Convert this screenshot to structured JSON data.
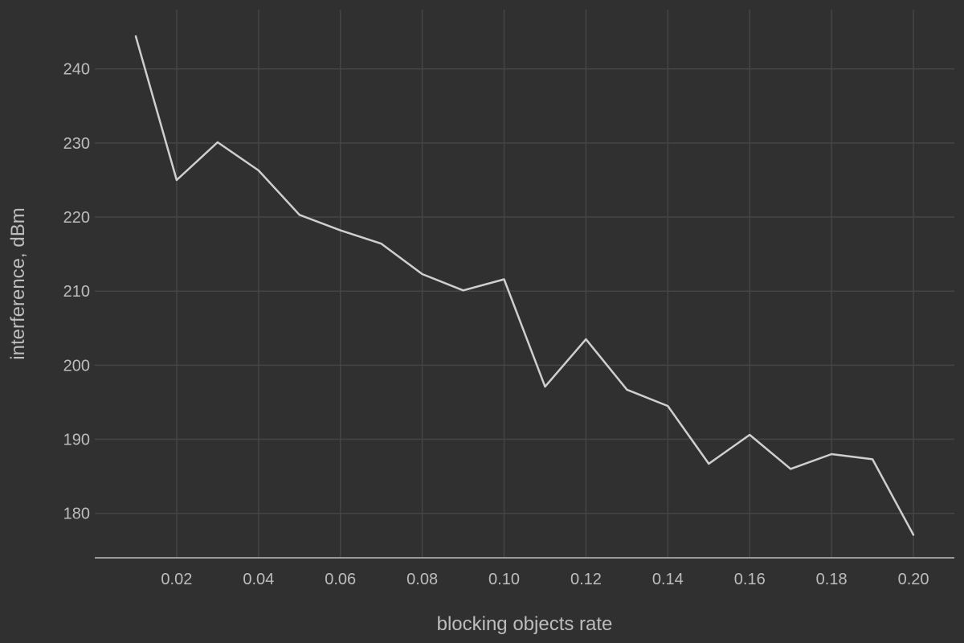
{
  "chart_data": {
    "type": "line",
    "xlabel": "blocking objects rate",
    "ylabel": "interference, dBm",
    "xlim": [
      0.0,
      0.21
    ],
    "ylim": [
      174,
      248
    ],
    "x_ticks": [
      0.02,
      0.04,
      0.06,
      0.08,
      0.1,
      0.12,
      0.14,
      0.16,
      0.18,
      0.2
    ],
    "x_tick_labels": [
      "0.02",
      "0.04",
      "0.06",
      "0.08",
      "0.10",
      "0.12",
      "0.14",
      "0.16",
      "0.18",
      "0.20"
    ],
    "y_ticks": [
      180,
      190,
      200,
      210,
      220,
      230,
      240
    ],
    "y_tick_labels": [
      "180",
      "190",
      "200",
      "210",
      "220",
      "230",
      "240"
    ],
    "grid": true,
    "colors": {
      "background": "#303030",
      "line": "#cfcfcf",
      "grid": "#454545",
      "text": "#bdbdbd"
    },
    "series": [
      {
        "x": [
          0.01,
          0.02,
          0.03,
          0.04,
          0.05,
          0.06,
          0.07,
          0.08,
          0.09,
          0.1,
          0.11,
          0.12,
          0.13,
          0.14,
          0.15,
          0.16,
          0.17,
          0.18,
          0.19,
          0.2
        ],
        "values": [
          244.4,
          225.0,
          230.1,
          226.3,
          220.3,
          218.2,
          216.4,
          212.3,
          210.1,
          211.6,
          197.1,
          203.5,
          196.7,
          194.5,
          186.7,
          190.6,
          186.0,
          188.0,
          187.3,
          177.1
        ]
      }
    ]
  }
}
